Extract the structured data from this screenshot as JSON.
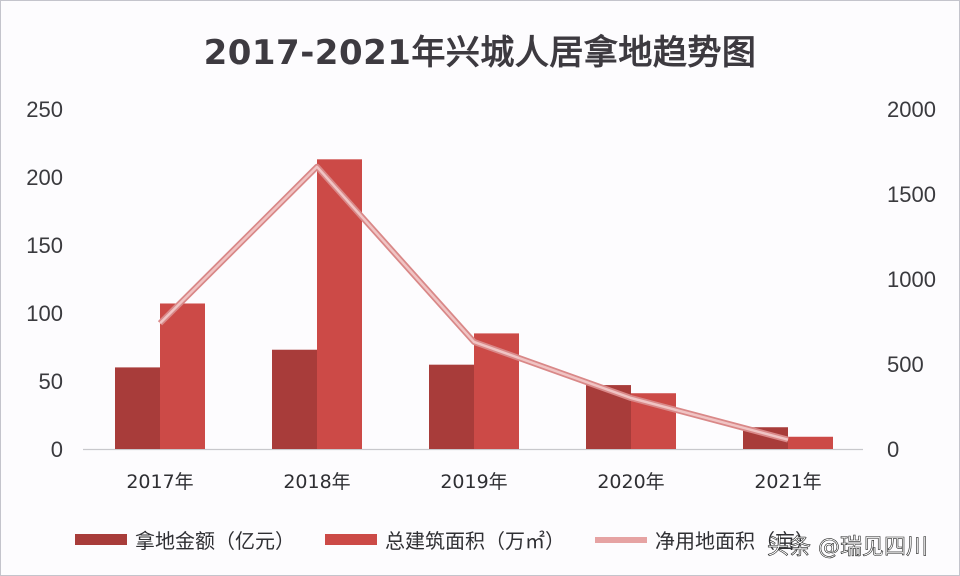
{
  "title": "2017-2021年兴城人居拿地趋势图",
  "watermark": "头条 @瑞见四川",
  "colors": {
    "land_amount": "#a83c3a",
    "floor_area": "#cc4a47",
    "net_land_area": "#e6a3a3"
  },
  "legend": [
    {
      "label": "拿地金额（亿元）",
      "type": "bar"
    },
    {
      "label": "总建筑面积（万㎡）",
      "type": "bar"
    },
    {
      "label": "净用地面积（亩）",
      "type": "line"
    }
  ],
  "chart_data": {
    "type": "bar",
    "title": "2017-2021年兴城人居拿地趋势图",
    "categories": [
      "2017年",
      "2018年",
      "2019年",
      "2020年",
      "2021年"
    ],
    "series": [
      {
        "name": "拿地金额（亿元）",
        "type": "bar",
        "axis": "left",
        "values": [
          60,
          73,
          62,
          47,
          16
        ]
      },
      {
        "name": "总建筑面积（万㎡）",
        "type": "bar",
        "axis": "left",
        "values": [
          107,
          213,
          85,
          41,
          9
        ]
      },
      {
        "name": "净用地面积（亩）",
        "type": "line",
        "axis": "right",
        "values": [
          740,
          1660,
          630,
          300,
          55
        ]
      }
    ],
    "left_axis": {
      "ticks": [
        "0",
        "50",
        "100",
        "150",
        "200",
        "250"
      ],
      "ylim": [
        0,
        250
      ]
    },
    "right_axis": {
      "ticks": [
        "0",
        "500",
        "1000",
        "1500",
        "2000"
      ],
      "ylim": [
        0,
        2000
      ]
    },
    "xlabel": "",
    "ylabel": "",
    "grid": false,
    "legend_position": "bottom"
  }
}
